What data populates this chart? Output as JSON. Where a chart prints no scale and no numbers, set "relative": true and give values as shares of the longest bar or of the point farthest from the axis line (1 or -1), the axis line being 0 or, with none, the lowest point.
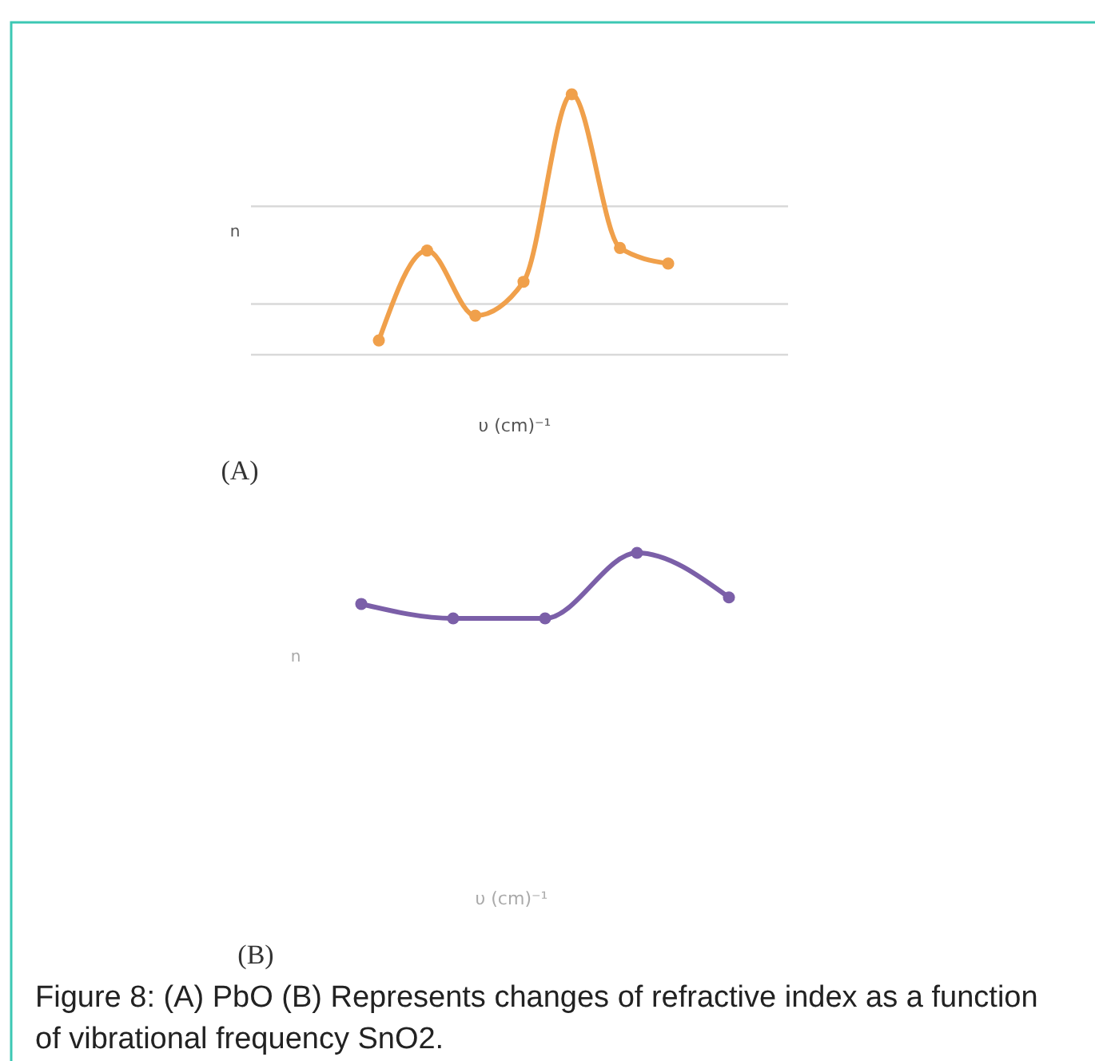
{
  "chart_data": [
    {
      "type": "line",
      "title": "(A)",
      "xlabel": "υ (cm)⁻¹",
      "ylabel": "n",
      "relative": true,
      "categories": [
        null,
        null,
        null,
        null,
        null,
        null,
        null
      ],
      "marker": "circle",
      "line_style": "solid",
      "series": [
        {
          "color": "#f0a04b",
          "values": [
            0.055,
            0.4,
            0.15,
            0.28,
            1,
            0.41,
            0.35
          ]
        }
      ],
      "ref_lines": [
        {
          "axis": "y",
          "value": 0,
          "color": "#d9d9d9"
        },
        {
          "axis": "y",
          "value": 0.195,
          "color": "#d9d9d9"
        },
        {
          "axis": "y",
          "value": 0.57,
          "color": "#d9d9d9"
        }
      ]
    },
    {
      "type": "line",
      "title": "(B)",
      "xlabel": "υ (cm)⁻¹",
      "ylabel": "n",
      "relative": true,
      "categories": [
        null,
        null,
        null,
        null,
        null
      ],
      "marker": "circle",
      "line_style": "solid",
      "series": [
        {
          "color": "#7b5fa8",
          "values": [
            0.22,
            0,
            0,
            1,
            0.32
          ]
        }
      ],
      "annotations": [
        "Figure 8: (A) PbO (B) Represents changes of refractive index as a function of vibrational frequency SnO2."
      ]
    }
  ]
}
